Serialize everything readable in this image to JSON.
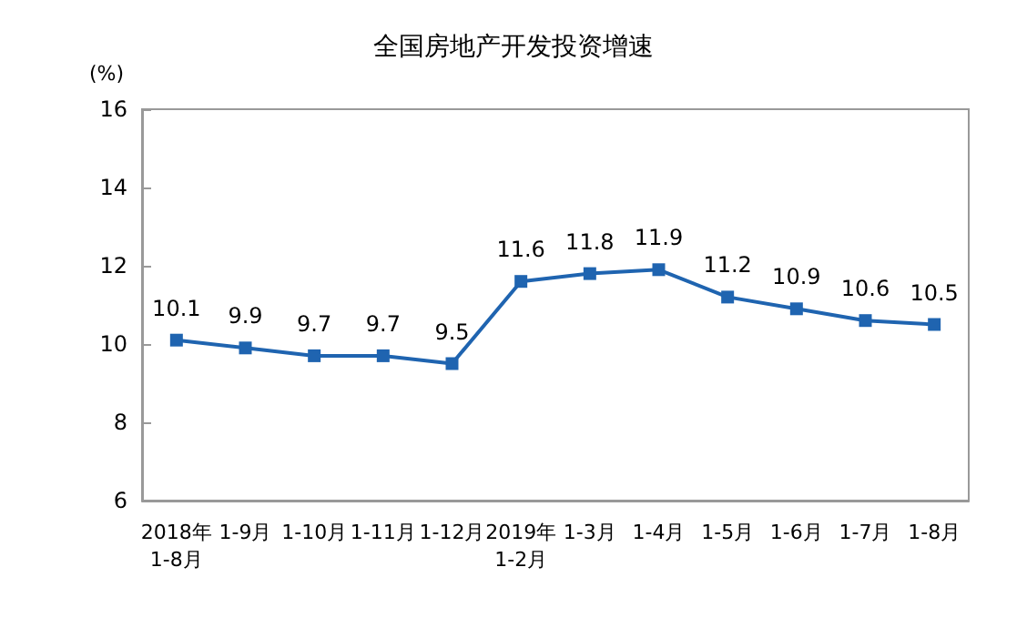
{
  "chart_data": {
    "type": "line",
    "title": "全国房地产开发投资增速",
    "ylabel": "(%)",
    "categories": [
      "2018年\n1-8月",
      "1-9月",
      "1-10月",
      "1-11月",
      "1-12月",
      "2019年\n1-2月",
      "1-3月",
      "1-4月",
      "1-5月",
      "1-6月",
      "1-7月",
      "1-8月"
    ],
    "series": [
      {
        "color": "#1f64b0",
        "values": [
          10.1,
          9.9,
          9.7,
          9.7,
          9.5,
          11.6,
          11.8,
          11.9,
          11.2,
          10.9,
          10.6,
          10.5
        ]
      }
    ],
    "ylim": [
      6,
      16
    ],
    "yticks": [
      6,
      8,
      10,
      12,
      14,
      16
    ],
    "grid": false,
    "marker": "square",
    "line_style": "solid",
    "data_labels": true
  }
}
